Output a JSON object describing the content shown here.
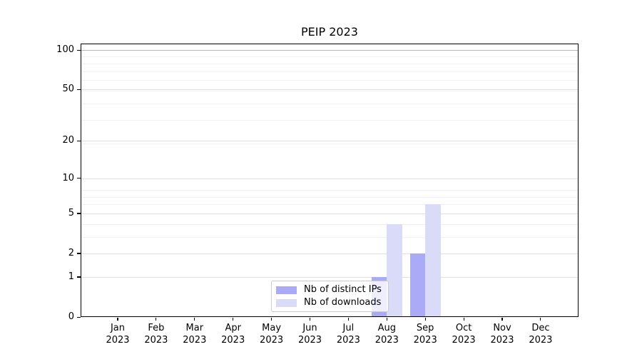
{
  "chart_data": {
    "type": "bar",
    "title": "PEIP 2023",
    "categories": [
      "Jan",
      "Feb",
      "Mar",
      "Apr",
      "May",
      "Jun",
      "Jul",
      "Aug",
      "Sep",
      "Oct",
      "Nov",
      "Dec"
    ],
    "year_label": "2023",
    "series": [
      {
        "name": "Nb of distinct IPs",
        "color": "#aaaaf7",
        "values": [
          0,
          0,
          0,
          0,
          0,
          0,
          0,
          1,
          2,
          0,
          0,
          0
        ]
      },
      {
        "name": "Nb of downloads",
        "color": "#dadaf9",
        "values": [
          0,
          0,
          0,
          0,
          0,
          0,
          0,
          4,
          6,
          0,
          0,
          0
        ]
      }
    ],
    "yaxis": {
      "scale": "log(v+1)",
      "ticks": [
        0,
        1,
        2,
        5,
        10,
        20,
        50,
        100
      ],
      "minor_gridlines": [
        3,
        4,
        6,
        7,
        8,
        19,
        29,
        39,
        49,
        59,
        69,
        79,
        89
      ],
      "ylim": [
        0,
        112
      ]
    },
    "xlabel": "",
    "ylabel": "",
    "grid": true,
    "legend_position": "lower-center"
  },
  "colors": {
    "grid_minor": "rgba(0,0,0,0.055)",
    "grid_major": "rgba(0,0,0,0.12)",
    "grid_top": "rgba(0,0,0,0.28)",
    "axis": "#000000"
  }
}
